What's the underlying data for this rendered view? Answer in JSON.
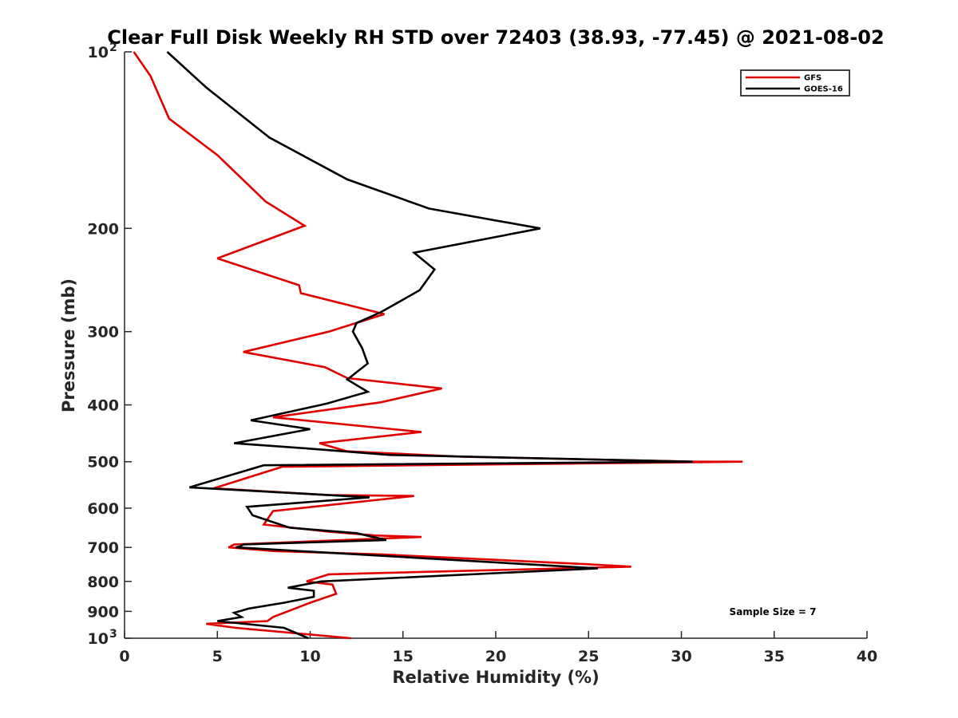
{
  "chart_data": {
    "type": "line",
    "title": "Clear Full Disk Weekly RH STD over 72403 (38.93, -77.45) @ 2021-08-02",
    "xlabel": "Relative Humidity (%)",
    "ylabel": "Pressure (mb)",
    "xlim": [
      0,
      40
    ],
    "ylim": [
      100,
      1000
    ],
    "yscale": "log",
    "y_reversed": true,
    "grid": false,
    "legend_position": "top-right",
    "x_ticks": [
      0,
      5,
      10,
      15,
      20,
      25,
      30,
      35,
      40
    ],
    "x_tick_labels": [
      "0",
      "5",
      "10",
      "15",
      "20",
      "25",
      "30",
      "35",
      "40"
    ],
    "y_ticks": [
      {
        "value": 100,
        "label": "10",
        "sup": "2"
      },
      {
        "value": 200,
        "label": "200",
        "sup": ""
      },
      {
        "value": 300,
        "label": "300",
        "sup": ""
      },
      {
        "value": 400,
        "label": "400",
        "sup": ""
      },
      {
        "value": 500,
        "label": "500",
        "sup": ""
      },
      {
        "value": 600,
        "label": "600",
        "sup": ""
      },
      {
        "value": 700,
        "label": "700",
        "sup": ""
      },
      {
        "value": 800,
        "label": "800",
        "sup": ""
      },
      {
        "value": 900,
        "label": "900",
        "sup": ""
      },
      {
        "value": 1000,
        "label": "10",
        "sup": "3"
      }
    ],
    "annotation": "Sample Size = 7",
    "series": [
      {
        "name": "GFS",
        "color": "#e00000",
        "x": [
          0.5,
          1.4,
          2.4,
          5.0,
          7.6,
          9.7,
          5.0,
          9.4,
          9.5,
          14.0,
          11.0,
          6.4,
          10.8,
          12.0,
          17.1,
          13.8,
          8.0,
          16.0,
          10.5,
          12.0,
          18.0,
          30.6,
          33.3,
          8.5,
          4.8,
          11.0,
          15.6,
          8.0,
          7.8,
          7.5,
          11.0,
          13.5,
          16.0,
          5.9,
          5.6,
          8.0,
          14.0,
          25.0,
          27.3,
          11.0,
          9.8,
          11.2,
          11.4,
          10.0,
          8.0,
          7.7,
          4.4,
          6.0,
          12.2
        ],
        "y": [
          100,
          110,
          130,
          150,
          180,
          198,
          225,
          250,
          258,
          280,
          300,
          325,
          345,
          360,
          375,
          396,
          420,
          445,
          465,
          480,
          490,
          500,
          500,
          510,
          555,
          570,
          572,
          607,
          620,
          640,
          658,
          668,
          672,
          692,
          700,
          710,
          720,
          748,
          755,
          778,
          800,
          810,
          840,
          870,
          920,
          935,
          945,
          960,
          1000
        ],
        "values": [
          0.5,
          1.4,
          2.4,
          5.0,
          7.6,
          9.7,
          5.0,
          9.4,
          9.5,
          14.0,
          11.0,
          6.4,
          10.8,
          12.0,
          17.1,
          13.8,
          8.0,
          16.0,
          10.5,
          12.0,
          18.0,
          30.6,
          33.3,
          8.5,
          4.8,
          11.0,
          15.6,
          8.0,
          7.8,
          7.5,
          11.0,
          13.5,
          16.0,
          5.9,
          5.6,
          8.0,
          14.0,
          25.0,
          27.3,
          11.0,
          9.8,
          11.2,
          11.4,
          10.0,
          8.0,
          7.7,
          4.4,
          6.0,
          12.2
        ]
      },
      {
        "name": "GOES-16",
        "color": "#000000",
        "x": [
          2.3,
          4.4,
          7.8,
          12.0,
          16.4,
          22.4,
          15.6,
          16.7,
          15.9,
          13.8,
          12.5,
          12.3,
          12.8,
          13.1,
          12.0,
          13.1,
          10.9,
          6.8,
          10.0,
          5.9,
          10.0,
          14.3,
          30.6,
          7.5,
          3.5,
          13.2,
          6.6,
          6.9,
          8.9,
          12.5,
          14.1,
          6.4,
          6.2,
          6.0,
          25.5,
          10.6,
          8.8,
          10.2,
          10.2,
          8.6,
          6.7,
          5.9,
          6.3,
          5.0,
          8.6,
          9.9
        ],
        "y": [
          100,
          115,
          140,
          165,
          185,
          200,
          220,
          235,
          255,
          278,
          290,
          300,
          320,
          340,
          362,
          380,
          398,
          425,
          440,
          465,
          475,
          487,
          500,
          507,
          553,
          575,
          597,
          617,
          648,
          662,
          680,
          692,
          698,
          700,
          760,
          800,
          820,
          830,
          850,
          870,
          890,
          905,
          920,
          935,
          960,
          1000
        ],
        "values": [
          2.3,
          4.4,
          7.8,
          12.0,
          16.4,
          22.4,
          15.6,
          16.7,
          15.9,
          13.8,
          12.5,
          12.3,
          12.8,
          13.1,
          12.0,
          13.1,
          10.9,
          6.8,
          10.0,
          5.9,
          10.0,
          14.3,
          30.6,
          7.5,
          3.5,
          13.2,
          6.6,
          6.9,
          8.9,
          12.5,
          14.1,
          6.4,
          6.2,
          6.0,
          25.5,
          10.6,
          8.8,
          10.2,
          10.2,
          8.6,
          6.7,
          5.9,
          6.3,
          5.0,
          8.6,
          9.9
        ]
      }
    ]
  }
}
